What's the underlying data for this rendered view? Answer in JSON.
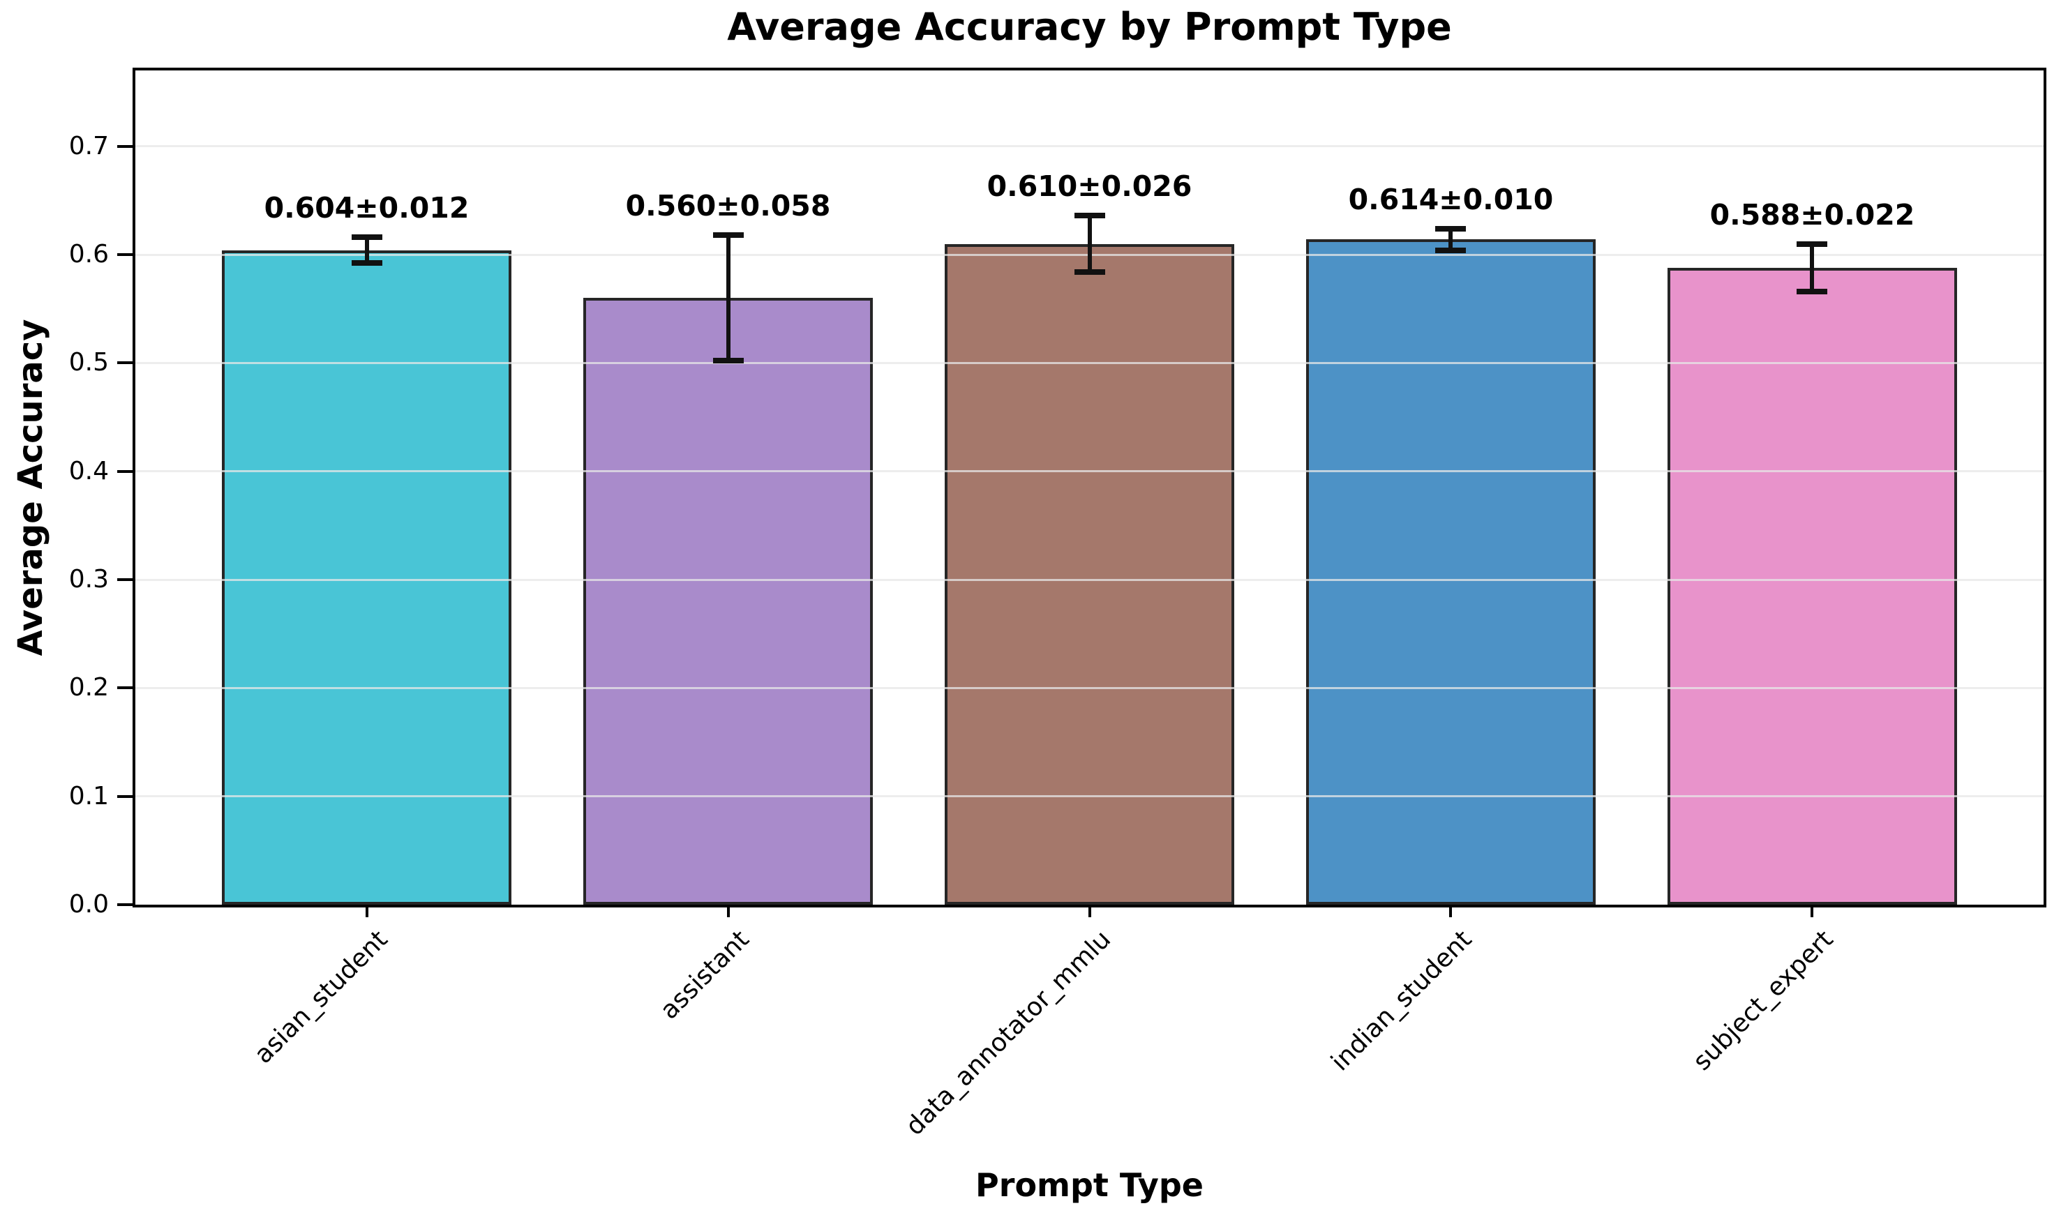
{
  "title": "Average Accuracy by Prompt Type",
  "chart_data": {
    "type": "bar",
    "title": "Average Accuracy by Prompt Type",
    "xlabel": "Prompt Type",
    "ylabel": "Average Accuracy",
    "categories": [
      "asian_student",
      "assistant",
      "data_annotator_mmlu",
      "indian_student",
      "subject_expert"
    ],
    "values": [
      0.604,
      0.56,
      0.61,
      0.614,
      0.588
    ],
    "errors": [
      0.012,
      0.058,
      0.026,
      0.01,
      0.022
    ],
    "bar_labels": [
      "0.604±0.012",
      "0.560±0.058",
      "0.610±0.026",
      "0.614±0.010",
      "0.588±0.022"
    ],
    "bar_colors": [
      "#49C5D6",
      "#A98BCB",
      "#A5786B",
      "#4D92C6",
      "#E893CB"
    ],
    "bar_edge_color": "#262626",
    "error_color": "#111111",
    "grid_color": "#E7E7E7",
    "background_color": "#FFFFFF",
    "ylim": [
      0,
      0.77
    ],
    "yticks": [
      0.0,
      0.1,
      0.2,
      0.3,
      0.4,
      0.5,
      0.6,
      0.7
    ],
    "grid": true,
    "legend_position": "none",
    "bar_width_fraction": 0.8,
    "x_margin_units": 0.64
  }
}
